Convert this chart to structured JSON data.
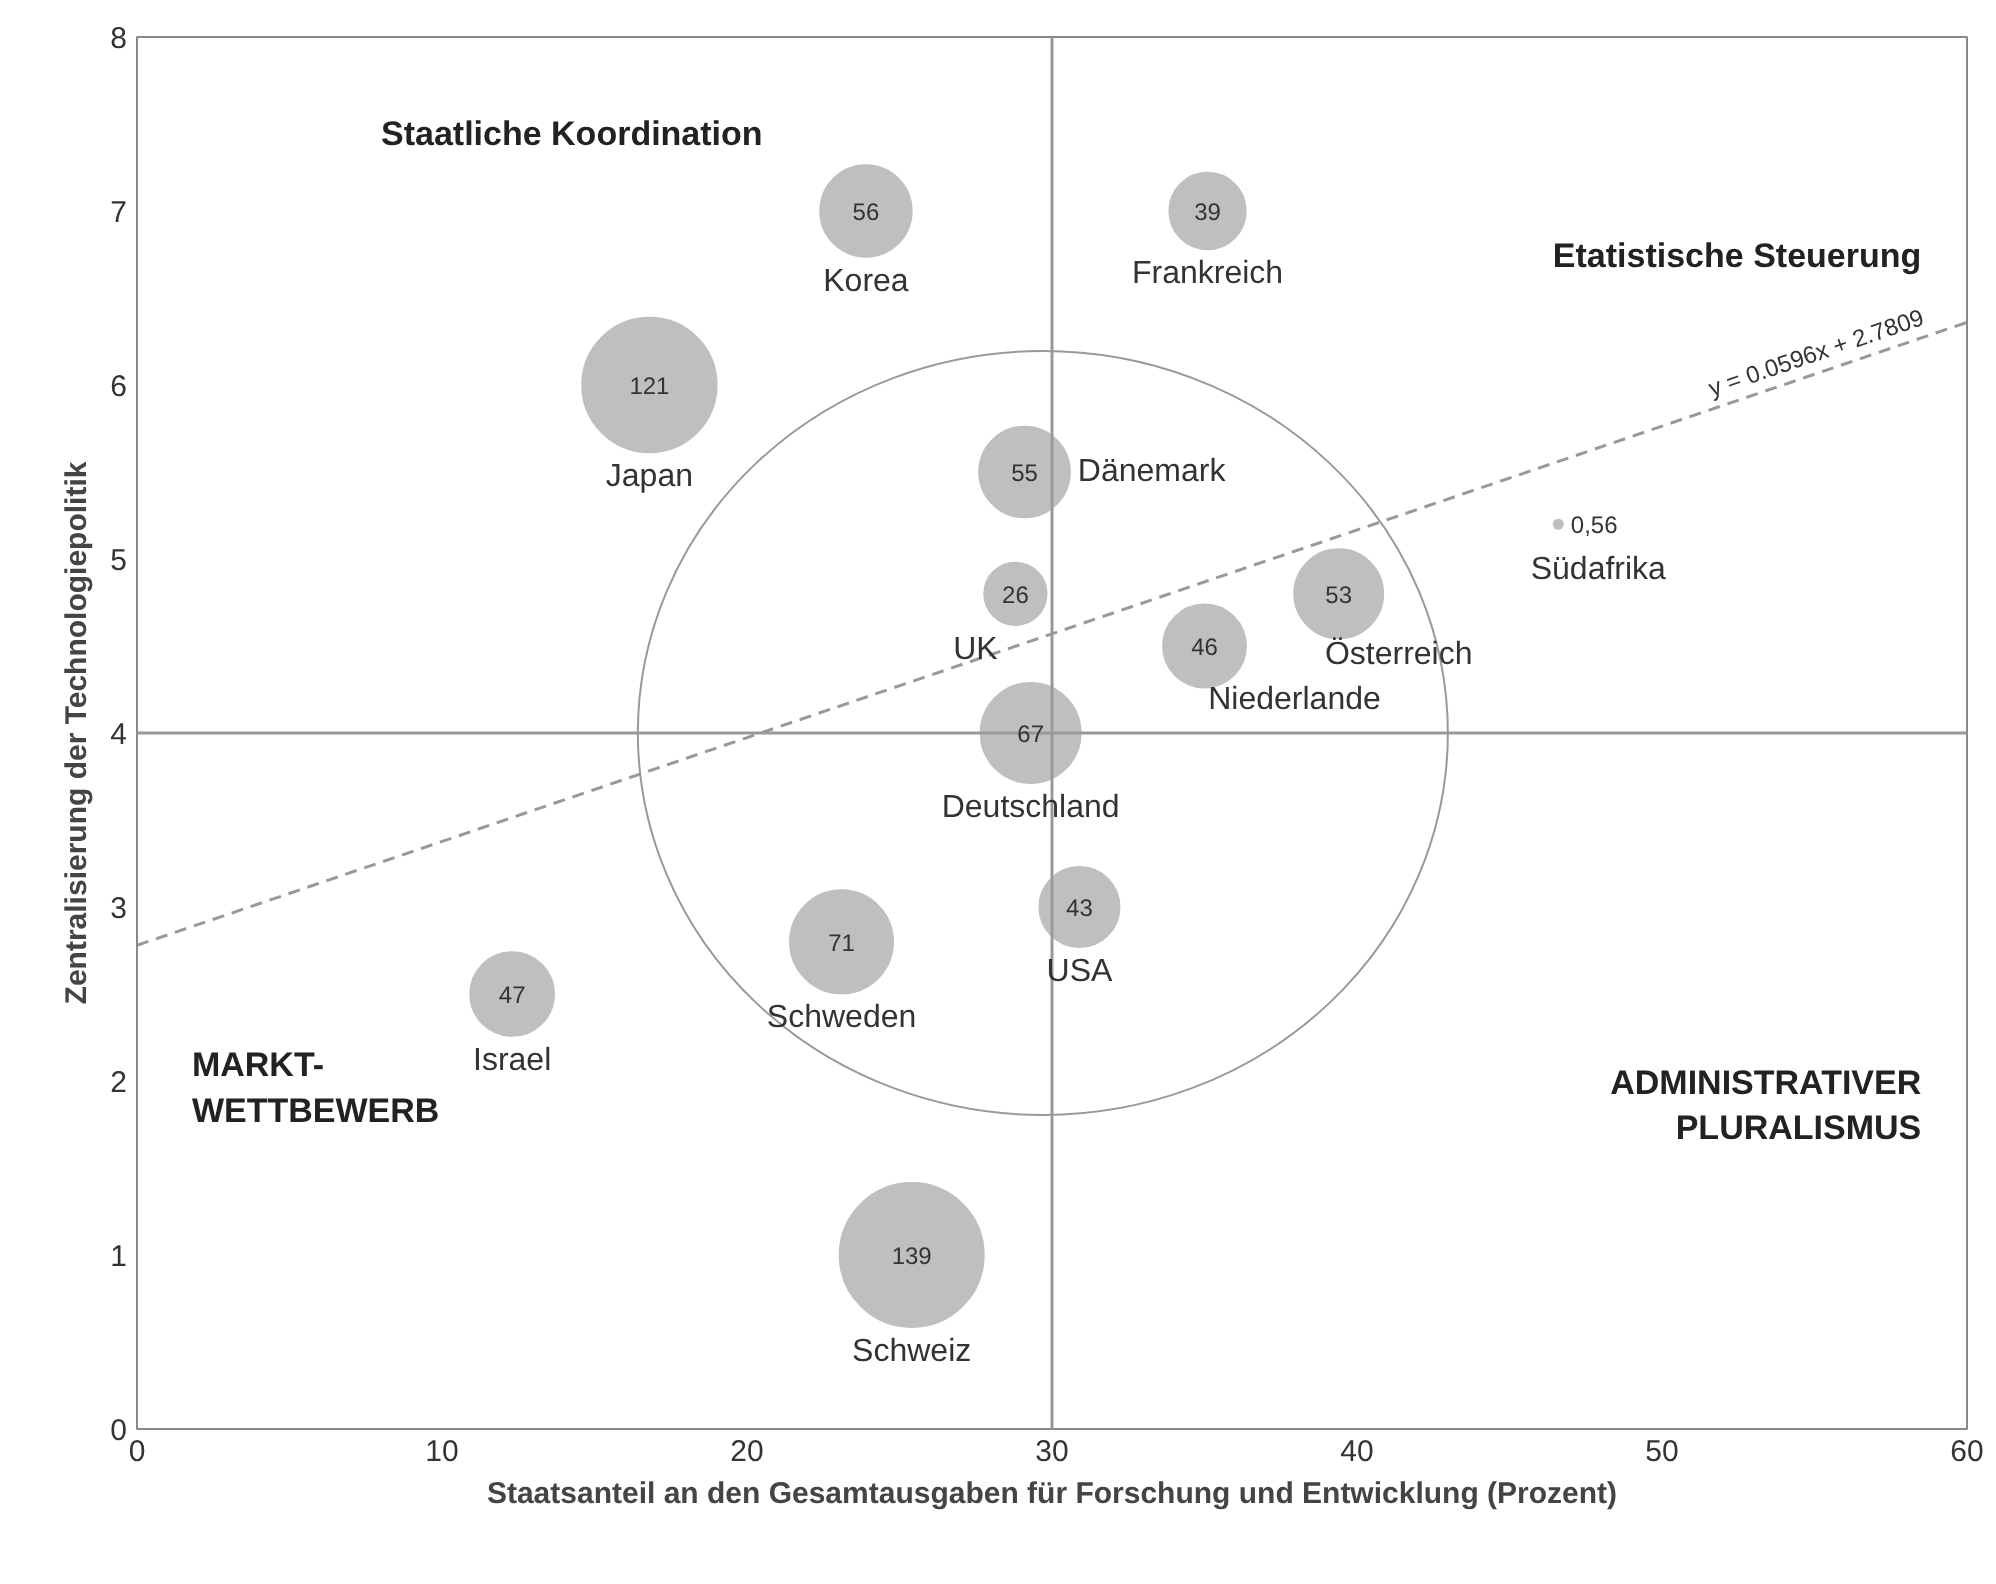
{
  "chart_data": {
    "type": "bubble",
    "xlabel": "Staatsanteil an den Gesamtausgaben für Forschung und Entwicklung (Prozent)",
    "ylabel": "Zentralisierung der Technologiepolitik",
    "xlim": [
      0,
      60
    ],
    "xticks": [
      0,
      10,
      20,
      30,
      40,
      50,
      60
    ],
    "ylim": [
      0,
      8
    ],
    "yticks": [
      0,
      1,
      2,
      3,
      4,
      5,
      6,
      7,
      8
    ],
    "grid": false,
    "series": [
      {
        "name": "Korea",
        "color": "#bfbfbf",
        "x": [
          23.9
        ],
        "values": [
          7.0
        ],
        "sizes": [
          0.403
        ]
      },
      {
        "name": "Frankreich",
        "color": "#bfbfbf",
        "x": [
          35.1
        ],
        "values": [
          7.0
        ],
        "sizes": [
          0.281
        ]
      },
      {
        "name": "Japan",
        "color": "#bfbfbf",
        "x": [
          16.8
        ],
        "values": [
          6.0
        ],
        "sizes": [
          0.871
        ]
      },
      {
        "name": "Dänemark",
        "color": "#bfbfbf",
        "x": [
          29.1
        ],
        "values": [
          5.5
        ],
        "sizes": [
          0.396
        ]
      },
      {
        "name": "UK",
        "color": "#bfbfbf",
        "x": [
          28.8
        ],
        "values": [
          4.8
        ],
        "sizes": [
          0.187
        ]
      },
      {
        "name": "Südafrika",
        "color": "#bfbfbf",
        "x": [
          46.6
        ],
        "values": [
          5.2
        ],
        "sizes": [
          0.004
        ]
      },
      {
        "name": "Österreich",
        "color": "#bfbfbf",
        "x": [
          39.4
        ],
        "values": [
          4.8
        ],
        "sizes": [
          0.381
        ]
      },
      {
        "name": "Niederlande",
        "color": "#bfbfbf",
        "x": [
          35.0
        ],
        "values": [
          4.5
        ],
        "sizes": [
          0.331
        ]
      },
      {
        "name": "Deutschland",
        "color": "#bfbfbf",
        "x": [
          29.3
        ],
        "values": [
          4.0
        ],
        "sizes": [
          0.482
        ]
      },
      {
        "name": "USA",
        "color": "#bfbfbf",
        "x": [
          30.9
        ],
        "values": [
          3.0
        ],
        "sizes": [
          0.309
        ]
      },
      {
        "name": "Schweden",
        "color": "#bfbfbf",
        "x": [
          23.1
        ],
        "values": [
          2.8
        ],
        "sizes": [
          0.511
        ]
      },
      {
        "name": "Israel",
        "color": "#bfbfbf",
        "x": [
          12.3
        ],
        "values": [
          2.5
        ],
        "sizes": [
          0.338
        ]
      },
      {
        "name": "Schweiz",
        "color": "#bfbfbf",
        "x": [
          25.4
        ],
        "values": [
          1.0
        ],
        "sizes": [
          1
        ]
      },
      {
        "type": "line",
        "color": "#999999",
        "line_style": "dashed",
        "x": [
          0,
          60
        ],
        "values": [
          2.78,
          6.36
        ]
      }
    ],
    "ref_lines": [
      {
        "axis": "x",
        "value": 30,
        "color": "#999999"
      },
      {
        "axis": "y",
        "value": 4,
        "color": "#999999"
      }
    ],
    "annotations": [
      {
        "text": "56",
        "x": 23.9,
        "y": 7.0
      },
      {
        "text": "39",
        "x": 35.1,
        "y": 7.0
      },
      {
        "text": "121",
        "x": 16.8,
        "y": 6.0
      },
      {
        "text": "55",
        "x": 29.1,
        "y": 5.5
      },
      {
        "text": "26",
        "x": 28.8,
        "y": 4.8
      },
      {
        "text": "0,56",
        "x": 46.6,
        "y": 5.2
      },
      {
        "text": "53",
        "x": 39.4,
        "y": 4.8
      },
      {
        "text": "46",
        "x": 35.0,
        "y": 4.5
      },
      {
        "text": "67",
        "x": 29.3,
        "y": 4.0
      },
      {
        "text": "43",
        "x": 30.9,
        "y": 3.0
      },
      {
        "text": "71",
        "x": 23.1,
        "y": 2.8
      },
      {
        "text": "47",
        "x": 12.3,
        "y": 2.5
      },
      {
        "text": "139",
        "x": 25.4,
        "y": 1.0
      },
      "y = 0.0596x + 2.7809",
      "Staatliche Koordination",
      "Etatistische Steuerung",
      "MARKT-\nWETTBEWERB",
      "ADMINISTRATIVER\nPLURALISMUS"
    ]
  }
}
